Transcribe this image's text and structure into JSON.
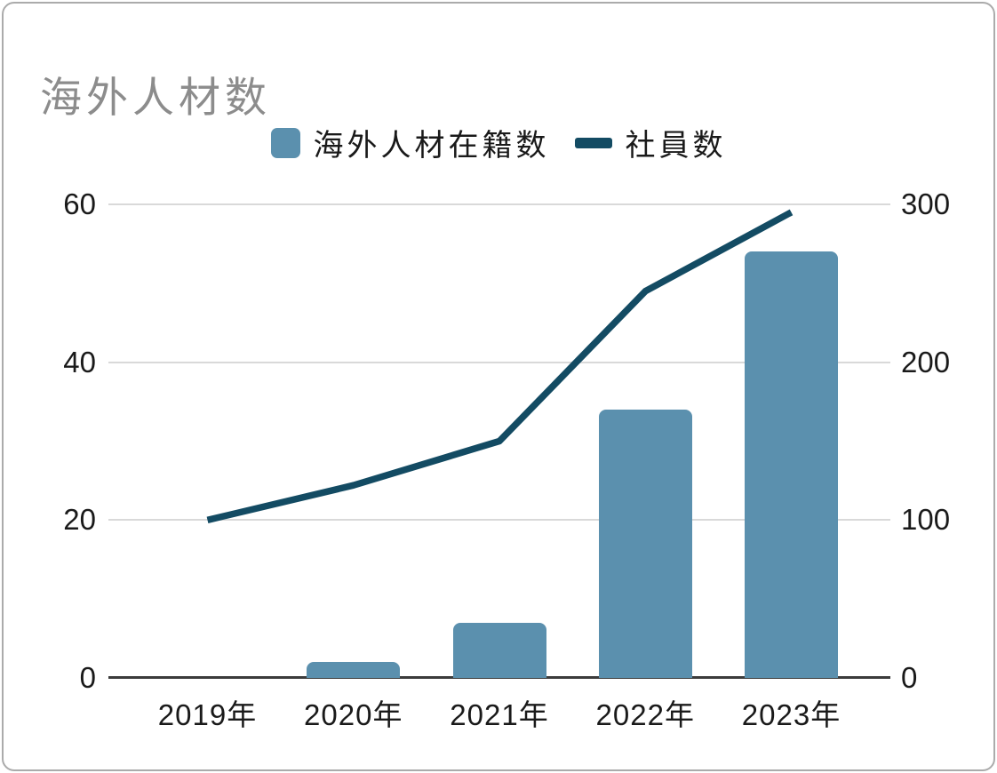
{
  "page": {
    "background": "#ffffff",
    "frame_border_color": "#ababab"
  },
  "chart_data": {
    "type": "combo",
    "title": "海外人材数",
    "title_color": "#8c8c8c",
    "categories": [
      "2019年",
      "2020年",
      "2021年",
      "2022年",
      "2023年"
    ],
    "series": [
      {
        "name": "海外人材在籍数",
        "type": "bar",
        "axis": "left",
        "color": "#5b90ae",
        "values": [
          0,
          2,
          7,
          34,
          54
        ]
      },
      {
        "name": "社員数",
        "type": "line",
        "axis": "right",
        "color": "#134b63",
        "values": [
          100,
          122,
          150,
          245,
          295
        ]
      }
    ],
    "left_axis": {
      "ticks": [
        0,
        20,
        40,
        60
      ],
      "range": [
        0,
        60
      ]
    },
    "right_axis": {
      "ticks": [
        0,
        100,
        200,
        300
      ],
      "range": [
        0,
        300
      ]
    },
    "grid": {
      "show": true,
      "color": "#d9d9d9"
    },
    "baseline_color": "#3b3b3b",
    "tick_label_color": "#1a1a1a",
    "legend_position": "top"
  }
}
